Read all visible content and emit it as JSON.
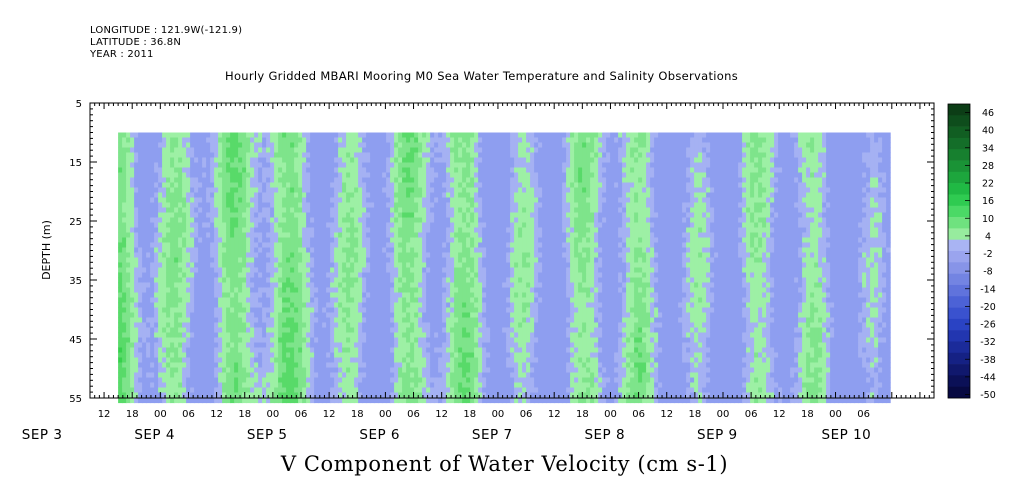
{
  "header": {
    "longitude": "LONGITUDE : 121.9W(-121.9)",
    "latitude": "LATITUDE : 36.8N",
    "year": "YEAR : 2011"
  },
  "chart_data": {
    "type": "heatmap",
    "title": "Hourly Gridded MBARI Mooring M0 Sea Water Temperature and Salinity Observations",
    "xlabel": "V Component of Water Velocity (cm s-1)",
    "ylabel": "DEPTH (m)",
    "ylim": [
      55,
      5
    ],
    "y_ticks": [
      "5",
      "15",
      "25",
      "35",
      "45",
      "55"
    ],
    "x_hour_ticks": [
      "12",
      "18",
      "00",
      "06",
      "12",
      "18",
      "00",
      "06",
      "12",
      "18",
      "00",
      "06",
      "12",
      "18",
      "00",
      "06",
      "12",
      "18",
      "00",
      "06",
      "12",
      "18",
      "00",
      "06",
      "12",
      "18",
      "00",
      "06"
    ],
    "x_day_labels": [
      "SEP 3",
      "SEP 4",
      "SEP 5",
      "SEP 6",
      "SEP 7",
      "SEP 8",
      "SEP 9",
      "SEP 10"
    ],
    "data_time_range": [
      "SEP 3 15",
      "SEP 10 11"
    ],
    "data_depth_range": [
      10,
      55
    ],
    "colorbar": {
      "labels": [
        "46",
        "40",
        "34",
        "28",
        "22",
        "16",
        "10",
        "4",
        "-2",
        "-8",
        "-14",
        "-20",
        "-26",
        "-32",
        "-38",
        "-44",
        "-50"
      ],
      "colors": [
        "#0c3d16",
        "#0e4d1c",
        "#115e22",
        "#146e29",
        "#17802f",
        "#1a9336",
        "#1da63d",
        "#20b944",
        "#2fcb51",
        "#4bd966",
        "#6fe27f",
        "#97ec9e",
        "#a9b4f3",
        "#9aa4ee",
        "#8794e8",
        "#7384e2",
        "#6073dc",
        "#4c62d6",
        "#3a52cf",
        "#2a43c4",
        "#2236b0",
        "#1b2b9a",
        "#152184",
        "#10186d",
        "#0b1057",
        "#070942"
      ]
    },
    "grid": false,
    "legend": "colorbar right"
  }
}
